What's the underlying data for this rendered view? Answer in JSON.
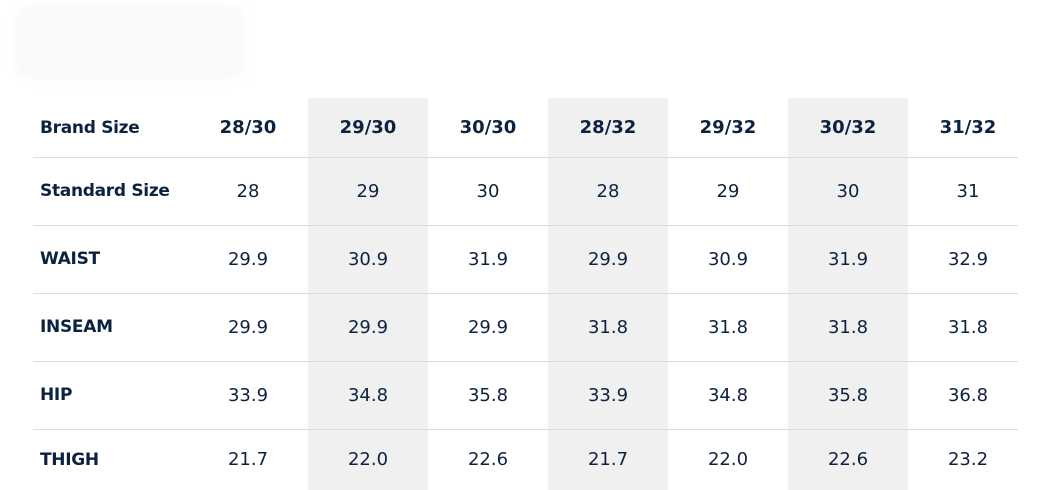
{
  "table": {
    "header": [
      "Brand Size",
      "28/30",
      "29/30",
      "30/30",
      "28/32",
      "29/32",
      "30/32",
      "31/32"
    ],
    "rows": [
      [
        "Standard Size",
        "28",
        "29",
        "30",
        "28",
        "29",
        "30",
        "31"
      ],
      [
        "WAIST",
        "29.9",
        "30.9",
        "31.9",
        "29.9",
        "30.9",
        "31.9",
        "32.9"
      ],
      [
        "INSEAM",
        "29.9",
        "29.9",
        "29.9",
        "31.8",
        "31.8",
        "31.8",
        "31.8"
      ],
      [
        "HIP",
        "33.9",
        "34.8",
        "35.8",
        "33.9",
        "34.8",
        "35.8",
        "36.8"
      ],
      [
        "THIGH",
        "21.7",
        "22.0",
        "22.6",
        "21.7",
        "22.0",
        "22.6",
        "23.2"
      ]
    ]
  }
}
